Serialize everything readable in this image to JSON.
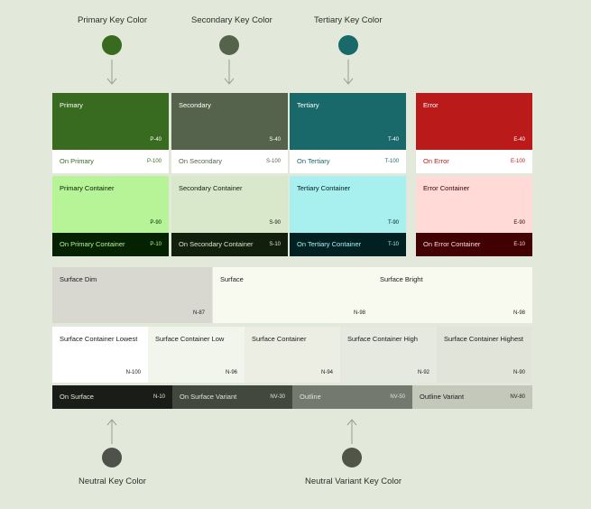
{
  "key_colors_top": [
    {
      "label": "Primary Key Color",
      "color": "#386a20"
    },
    {
      "label": "Secondary Key Color",
      "color": "#55624c"
    },
    {
      "label": "Tertiary Key Color",
      "color": "#19686a"
    }
  ],
  "key_colors_bottom": [
    {
      "label": "Neutral Key Color",
      "color": "#4e524a"
    },
    {
      "label": "Neutral Variant Key Color",
      "color": "#505547"
    }
  ],
  "columns": [
    {
      "main": {
        "name": "Primary",
        "code": "P-40",
        "bg": "#386a20",
        "fg": "#ffffff"
      },
      "on_main": {
        "name": "On Primary",
        "code": "P-100",
        "bg": "#ffffff",
        "fg": "#386a20"
      },
      "container": {
        "name": "Primary Container",
        "code": "P-90",
        "bg": "#b7f397",
        "fg": "#042100"
      },
      "on_container": {
        "name": "On Primary Container",
        "code": "P-10",
        "bg": "#042100",
        "fg": "#b7f397"
      }
    },
    {
      "main": {
        "name": "Secondary",
        "code": "S-40",
        "bg": "#55624c",
        "fg": "#ffffff"
      },
      "on_main": {
        "name": "On Secondary",
        "code": "S-100",
        "bg": "#ffffff",
        "fg": "#55624c"
      },
      "container": {
        "name": "Secondary Container",
        "code": "S-90",
        "bg": "#d9e7cb",
        "fg": "#131f0d"
      },
      "on_container": {
        "name": "On Secondary Container",
        "code": "S-10",
        "bg": "#131f0d",
        "fg": "#d9e7cb"
      }
    },
    {
      "main": {
        "name": "Tertiary",
        "code": "T-40",
        "bg": "#19686a",
        "fg": "#ffffff"
      },
      "on_main": {
        "name": "On Tertiary",
        "code": "T-100",
        "bg": "#ffffff",
        "fg": "#19686a"
      },
      "container": {
        "name": "Tertiary Container",
        "code": "T-90",
        "bg": "#a8eff0",
        "fg": "#002021"
      },
      "on_container": {
        "name": "On Tertiary Container",
        "code": "T-10",
        "bg": "#002021",
        "fg": "#a8eff0"
      }
    },
    {
      "main": {
        "name": "Error",
        "code": "E-40",
        "bg": "#ba1a1a",
        "fg": "#ffffff"
      },
      "on_main": {
        "name": "On Error",
        "code": "E-100",
        "bg": "#ffffff",
        "fg": "#ba1a1a"
      },
      "container": {
        "name": "Error Container",
        "code": "E-90",
        "bg": "#ffdad6",
        "fg": "#410002"
      },
      "on_container": {
        "name": "On Error Container",
        "code": "E-10",
        "bg": "#410002",
        "fg": "#ffdad6"
      }
    }
  ],
  "surface_row": [
    {
      "name": "Surface Dim",
      "code": "N-87",
      "bg": "#d8d8d0",
      "fg": "#1a1c18"
    },
    {
      "name": "Surface",
      "code": "N-98",
      "bg": "#f8faf0",
      "fg": "#1a1c18"
    },
    {
      "name": "Surface Bright",
      "code": "N-98",
      "bg": "#f8faf0",
      "fg": "#1a1c18"
    }
  ],
  "container_row": [
    {
      "name": "Surface Container Lowest",
      "code": "N-100",
      "bg": "#ffffff",
      "fg": "#1a1c18"
    },
    {
      "name": "Surface Container Low",
      "code": "N-96",
      "bg": "#f2f5eb",
      "fg": "#1a1c18"
    },
    {
      "name": "Surface Container",
      "code": "N-94",
      "bg": "#eceee4",
      "fg": "#1a1c18"
    },
    {
      "name": "Surface Container High",
      "code": "N-92",
      "bg": "#e6e9df",
      "fg": "#1a1c18"
    },
    {
      "name": "Surface Container Highest",
      "code": "N-90",
      "bg": "#e0e4d9",
      "fg": "#1a1c18"
    }
  ],
  "on_surface_row": [
    {
      "name": "On Surface",
      "code": "N-10",
      "bg": "#1a1c18",
      "fg": "#e3e5db"
    },
    {
      "name": "On Surface Variant",
      "code": "NV-30",
      "bg": "#43483e",
      "fg": "#e0e4d6"
    },
    {
      "name": "Outline",
      "code": "NV-50",
      "bg": "#73796e",
      "fg": "#e0e4d6"
    },
    {
      "name": "Outline Variant",
      "code": "NV-80",
      "bg": "#c3c8bb",
      "fg": "#1a1c18"
    }
  ]
}
